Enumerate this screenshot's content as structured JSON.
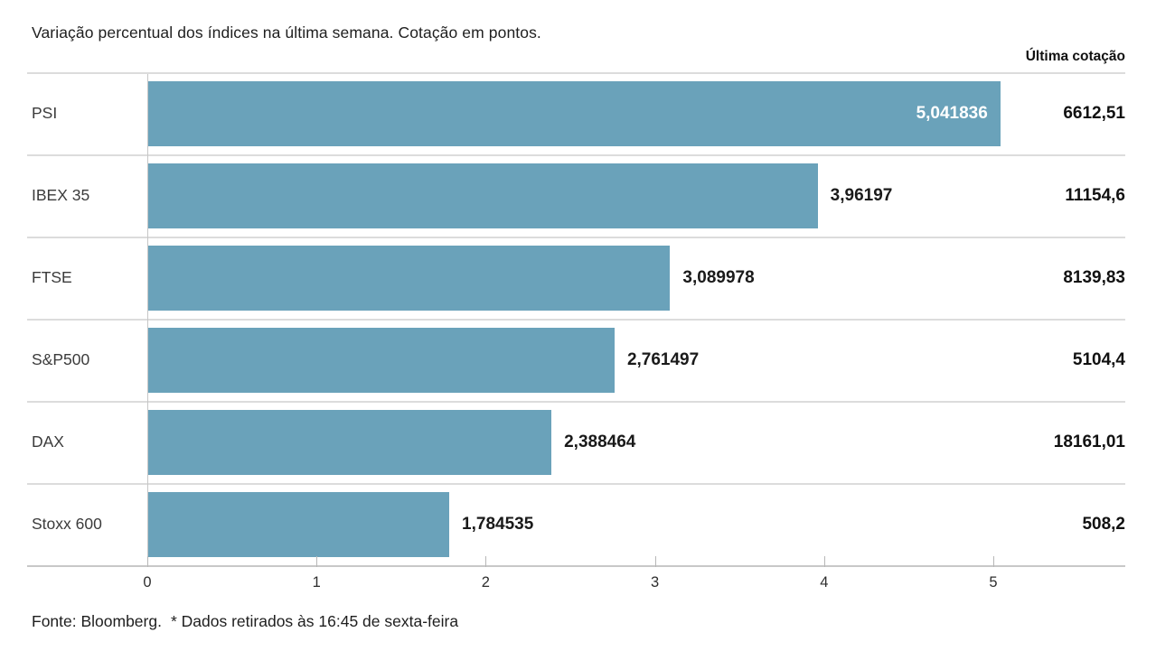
{
  "header": {
    "title": "Variação percentual dos índices na última semana. Cotação em pontos.",
    "right_column_label": "Última cotação"
  },
  "footer": {
    "source": "Fonte: Bloomberg.",
    "note": "* Dados retirados às 16:45 de sexta-feira"
  },
  "colors": {
    "bar": "#6aa2ba",
    "separator": "#dcdcdc",
    "inside_label": "#ffffff",
    "text": "#1f1f1f"
  },
  "chart_data": {
    "type": "bar",
    "orientation": "horizontal",
    "title": "Variação percentual dos índices na última semana. Cotação em pontos.",
    "categories": [
      "PSI",
      "IBEX 35",
      "FTSE",
      "S&P500",
      "DAX",
      "Stoxx 600"
    ],
    "values": [
      5.041836,
      3.96197,
      3.089978,
      2.761497,
      2.388464,
      1.784535
    ],
    "value_labels": [
      "5,041836",
      "3,96197",
      "3,089978",
      "2,761497",
      "2,388464",
      "1,784535"
    ],
    "last_quote_header": "Última cotação",
    "last_quotes": [
      "6612,51",
      "11154,6",
      "8139,83",
      "5104,4",
      "18161,01",
      "508,2"
    ],
    "x_ticks": [
      0,
      1,
      2,
      3,
      4,
      5
    ],
    "x_tick_labels": [
      "0",
      "1",
      "2",
      "3",
      "4",
      "5"
    ],
    "xlim": [
      0,
      5.78
    ],
    "xlabel": "",
    "ylabel": "",
    "grid": false,
    "legend": false
  }
}
